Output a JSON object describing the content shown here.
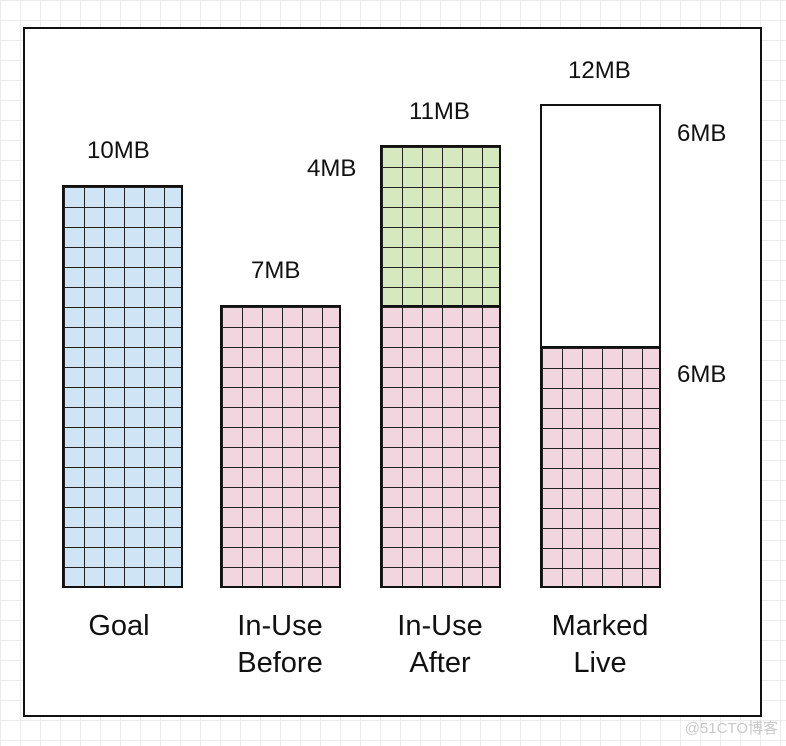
{
  "bars": {
    "goal": {
      "size_label": "10MB",
      "caption_line1": "Goal",
      "caption_line2": ""
    },
    "in_use_before": {
      "size_label": "7MB",
      "caption_line1": "In-Use",
      "caption_line2": "Before"
    },
    "in_use_after": {
      "size_label": "11MB",
      "added_label": "4MB",
      "caption_line1": "In-Use",
      "caption_line2": "After"
    },
    "marked_live": {
      "size_label": "12MB",
      "top_label": "6MB",
      "bottom_label": "6MB",
      "caption_line1": "Marked",
      "caption_line2": "Live"
    }
  },
  "colors": {
    "goal": "#cfe4f5",
    "in_use": "#f1d6df",
    "new_alloc": "#d6e8bd",
    "empty": "#ffffff"
  },
  "watermark": "@51CTO博客"
}
